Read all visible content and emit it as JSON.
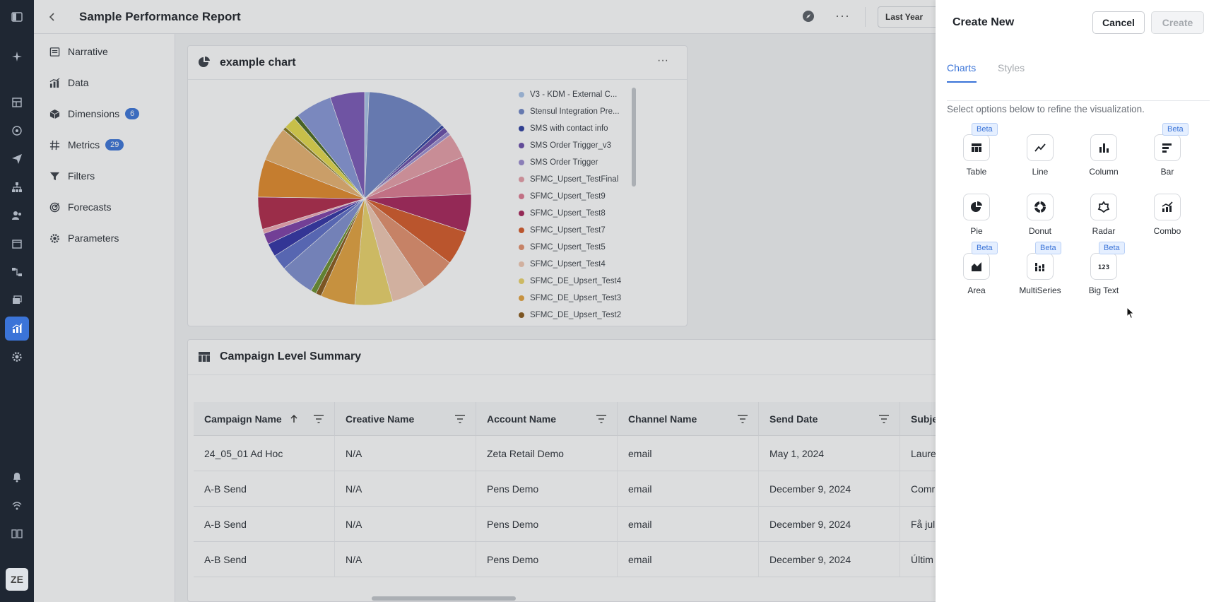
{
  "rail": {
    "avatar_text": "ZE",
    "icons": [
      "sparkle-icon",
      "dashboard-icon",
      "target-icon",
      "send-icon",
      "hierarchy-icon",
      "audience-icon",
      "calendar-icon",
      "flow-icon",
      "stack-icon",
      "analytics-icon",
      "settings-icon",
      "bell-icon",
      "signal-icon",
      "book-icon"
    ]
  },
  "header": {
    "title": "Sample Performance Report",
    "date_range": "Last Year"
  },
  "sidebar": {
    "items": [
      {
        "label": "Narrative",
        "icon": "narrative-icon"
      },
      {
        "label": "Data",
        "icon": "data-icon"
      },
      {
        "label": "Dimensions",
        "icon": "cube-icon",
        "badge": "6"
      },
      {
        "label": "Metrics",
        "icon": "hash-icon",
        "badge": "29"
      },
      {
        "label": "Filters",
        "icon": "filter-icon"
      },
      {
        "label": "Forecasts",
        "icon": "forecast-icon"
      },
      {
        "label": "Parameters",
        "icon": "gear-icon"
      }
    ]
  },
  "chart_card": {
    "title": "example chart"
  },
  "chart_data": {
    "type": "pie",
    "title": "example chart",
    "legend_position": "right",
    "slices": [
      {
        "name": "V3 - KDM - External C...",
        "value": 0.8,
        "color": "#a9c4e8"
      },
      {
        "name": "Stensul Integration Pre...",
        "value": 14.5,
        "color": "#6f86c6"
      },
      {
        "name": "SMS with contact info",
        "value": 0.6,
        "color": "#2e3fa0"
      },
      {
        "name": "SMS Order Trigger_v3",
        "value": 1.0,
        "color": "#6a4eaa"
      },
      {
        "name": "SMS Order Trigger",
        "value": 0.7,
        "color": "#9b8cd0"
      },
      {
        "name": "SFMC_Upsert_TestFinal",
        "value": 4.5,
        "color": "#e79ea8"
      },
      {
        "name": "SFMC_Upsert_Test9",
        "value": 6.8,
        "color": "#df7a92"
      },
      {
        "name": "SFMC_Upsert_Test8",
        "value": 6.8,
        "color": "#a8245a"
      },
      {
        "name": "SFMC_Upsert_Test7",
        "value": 6.2,
        "color": "#d65a28"
      },
      {
        "name": "SFMC_Upsert_Test5",
        "value": 6.2,
        "color": "#e4916d"
      },
      {
        "name": "SFMC_Upsert_Test4",
        "value": 6.2,
        "color": "#f2c9b3"
      },
      {
        "name": "SFMC_DE_Upsert_Test4",
        "value": 6.8,
        "color": "#ecd36a"
      },
      {
        "name": "SFMC_DE_Upsert_Test3",
        "value": 6.2,
        "color": "#e4a33e"
      },
      {
        "name": "SFMC_DE_Upsert_Test2",
        "value": 1.0,
        "color": "#8a5a1a"
      },
      {
        "name": "",
        "value": 1.0,
        "color": "#6a8f2e"
      },
      {
        "name": "",
        "value": 6.2,
        "color": "#7f8fd0"
      },
      {
        "name": "",
        "value": 2.8,
        "color": "#5d6ec8"
      },
      {
        "name": "",
        "value": 2.4,
        "color": "#3133a6"
      },
      {
        "name": "",
        "value": 2.0,
        "color": "#7e3fa8"
      },
      {
        "name": "",
        "value": 0.8,
        "color": "#f2a8b2"
      },
      {
        "name": "",
        "value": 5.8,
        "color": "#b0294a"
      },
      {
        "name": "",
        "value": 6.8,
        "color": "#e38a2a"
      },
      {
        "name": "",
        "value": 6.2,
        "color": "#e9b270"
      },
      {
        "name": "",
        "value": 0.6,
        "color": "#8a7a1a"
      },
      {
        "name": "",
        "value": 2.2,
        "color": "#e6db4a"
      },
      {
        "name": "",
        "value": 0.8,
        "color": "#4a6a1e"
      },
      {
        "name": "",
        "value": 6.6,
        "color": "#8898d8"
      },
      {
        "name": "",
        "value": 6.2,
        "color": "#7a58b8"
      }
    ]
  },
  "table": {
    "title": "Campaign Level Summary",
    "columns": [
      "Campaign Name",
      "Creative Name",
      "Account Name",
      "Channel Name",
      "Send Date",
      "Subje"
    ],
    "rows": [
      [
        "24_05_01 Ad Hoc",
        "N/A",
        "Zeta Retail Demo",
        "email",
        "May 1, 2024",
        "Laure"
      ],
      [
        "A-B Send",
        "N/A",
        "Pens Demo",
        "email",
        "December 9, 2024",
        "Comr"
      ],
      [
        "A-B Send",
        "N/A",
        "Pens Demo",
        "email",
        "December 9, 2024",
        "Få jul"
      ],
      [
        "A-B Send",
        "N/A",
        "Pens Demo",
        "email",
        "December 9, 2024",
        "Últim"
      ]
    ]
  },
  "panel": {
    "title": "Create New",
    "cancel_label": "Cancel",
    "create_label": "Create",
    "tabs": [
      {
        "label": "Charts",
        "active": true
      },
      {
        "label": "Styles",
        "active": false
      }
    ],
    "helper_text": "Select options below to refine the visualization.",
    "beta_label": "Beta",
    "options": [
      {
        "label": "Table",
        "icon": "table-icon",
        "beta": true
      },
      {
        "label": "Line",
        "icon": "line-chart-icon",
        "beta": false
      },
      {
        "label": "Column",
        "icon": "column-chart-icon",
        "beta": false
      },
      {
        "label": "Bar",
        "icon": "bar-chart-icon",
        "beta": true
      },
      {
        "label": "Pie",
        "icon": "pie-chart-icon",
        "beta": false
      },
      {
        "label": "Donut",
        "icon": "donut-chart-icon",
        "beta": false
      },
      {
        "label": "Radar",
        "icon": "radar-chart-icon",
        "beta": false
      },
      {
        "label": "Combo",
        "icon": "combo-chart-icon",
        "beta": false
      },
      {
        "label": "Area",
        "icon": "area-chart-icon",
        "beta": true
      },
      {
        "label": "MultiSeries",
        "icon": "multiseries-chart-icon",
        "beta": true
      },
      {
        "label": "Big Text",
        "icon": "big-text-icon",
        "beta": true
      }
    ]
  }
}
